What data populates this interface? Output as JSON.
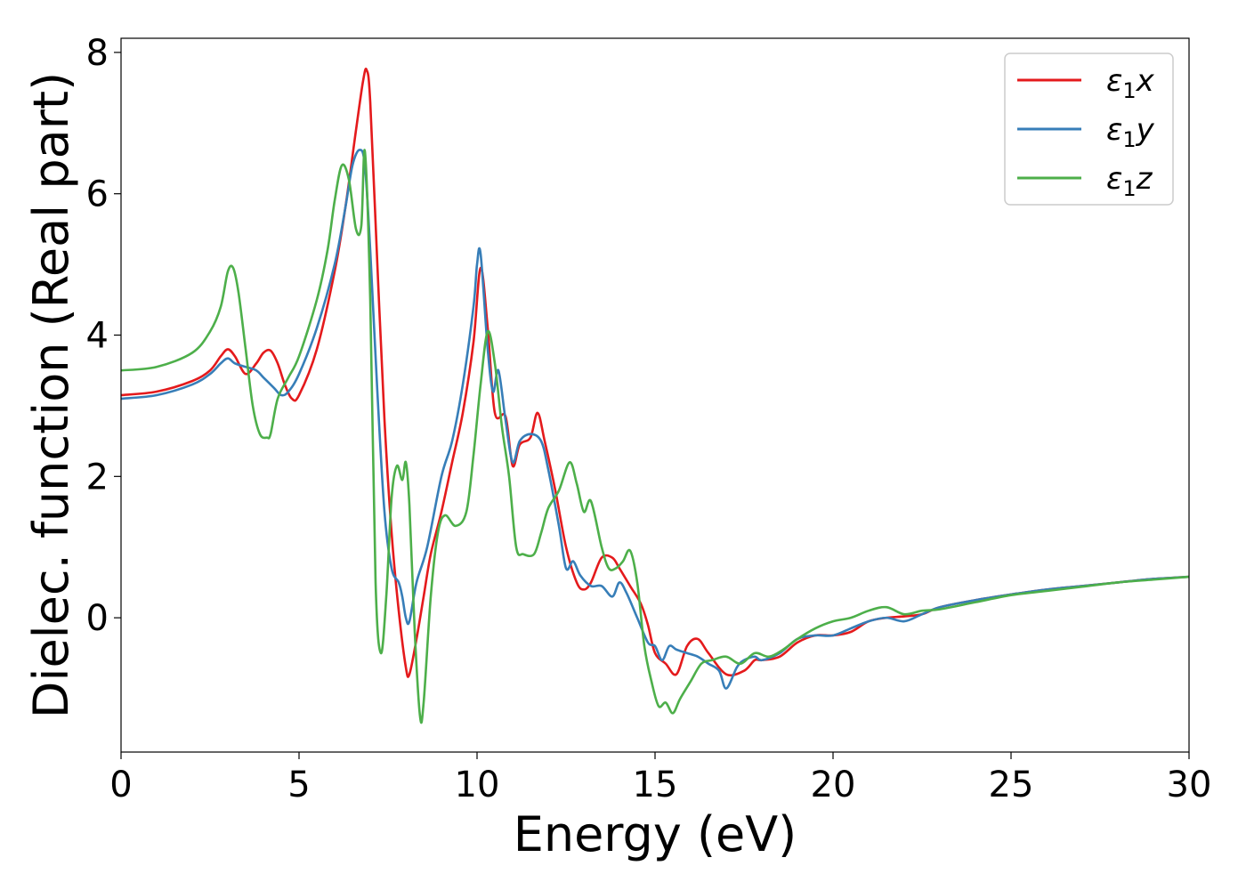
{
  "chart_data": {
    "type": "line",
    "title": "",
    "xlabel": "Energy (eV)",
    "ylabel": "Dielec. function (Real part)",
    "xlim": [
      0,
      30
    ],
    "ylim": [
      -1.9,
      8.2
    ],
    "xticks": [
      0,
      5,
      10,
      15,
      20,
      25,
      30
    ],
    "yticks": [
      0,
      2,
      4,
      6,
      8
    ],
    "grid": false,
    "legend_position": "top-right",
    "series": [
      {
        "name_base": "ε",
        "name_sub": "1",
        "name_tail": "x",
        "color": "#e41a1c",
        "x": [
          0,
          1,
          2,
          2.5,
          2.8,
          3.0,
          3.2,
          3.5,
          3.8,
          4.0,
          4.2,
          4.4,
          4.6,
          4.8,
          5.0,
          5.5,
          6.0,
          6.3,
          6.6,
          6.8,
          6.9,
          7.0,
          7.2,
          7.4,
          7.6,
          7.8,
          8.0,
          8.1,
          8.3,
          8.5,
          8.7,
          9.0,
          9.3,
          9.6,
          9.9,
          10.1,
          10.3,
          10.5,
          10.8,
          11.0,
          11.2,
          11.5,
          11.7,
          11.9,
          12.2,
          12.5,
          12.8,
          13.0,
          13.2,
          13.5,
          13.8,
          14.0,
          14.3,
          14.6,
          14.8,
          15.0,
          15.3,
          15.6,
          15.9,
          16.2,
          16.5,
          17.0,
          17.5,
          17.8,
          18.0,
          18.5,
          19.0,
          19.5,
          20.0,
          20.5,
          21.0,
          21.5,
          22.0,
          22.5,
          23.0,
          24.0,
          25.0,
          26.0,
          27.0,
          28.0,
          29.0,
          30.0
        ],
        "values": [
          3.15,
          3.2,
          3.35,
          3.5,
          3.7,
          3.8,
          3.7,
          3.45,
          3.6,
          3.75,
          3.78,
          3.6,
          3.3,
          3.1,
          3.15,
          3.8,
          4.9,
          5.8,
          6.9,
          7.6,
          7.75,
          7.3,
          5.0,
          2.8,
          1.2,
          0.1,
          -0.7,
          -0.8,
          -0.3,
          0.3,
          0.9,
          1.5,
          2.2,
          2.9,
          3.9,
          4.95,
          4.1,
          2.9,
          2.85,
          2.15,
          2.45,
          2.55,
          2.9,
          2.5,
          1.8,
          1.0,
          0.5,
          0.4,
          0.5,
          0.85,
          0.85,
          0.7,
          0.45,
          0.2,
          -0.1,
          -0.5,
          -0.65,
          -0.8,
          -0.4,
          -0.3,
          -0.5,
          -0.8,
          -0.75,
          -0.6,
          -0.6,
          -0.55,
          -0.35,
          -0.25,
          -0.25,
          -0.2,
          -0.05,
          0.0,
          0.02,
          0.05,
          0.15,
          0.25,
          0.33,
          0.4,
          0.45,
          0.5,
          0.55,
          0.58
        ]
      },
      {
        "name_base": "ε",
        "name_sub": "1",
        "name_tail": "y",
        "color": "#377eb8",
        "x": [
          0,
          1,
          2,
          2.5,
          2.8,
          3.0,
          3.2,
          3.5,
          3.8,
          4.0,
          4.3,
          4.5,
          4.7,
          5.0,
          5.5,
          6.0,
          6.3,
          6.5,
          6.7,
          6.85,
          7.0,
          7.2,
          7.4,
          7.6,
          7.8,
          7.9,
          8.0,
          8.1,
          8.3,
          8.6,
          9.0,
          9.3,
          9.6,
          9.9,
          10.0,
          10.1,
          10.3,
          10.45,
          10.6,
          10.8,
          11.0,
          11.2,
          11.5,
          11.8,
          12.0,
          12.3,
          12.5,
          12.7,
          12.9,
          13.2,
          13.5,
          13.8,
          14.0,
          14.2,
          14.5,
          14.8,
          15.0,
          15.2,
          15.4,
          15.6,
          15.9,
          16.2,
          16.5,
          16.8,
          17.0,
          17.3,
          17.5,
          17.8,
          18.0,
          18.5,
          19.0,
          19.5,
          20.0,
          20.5,
          21.0,
          21.5,
          22.0,
          22.5,
          23.0,
          24.0,
          25.0,
          26.0,
          27.0,
          28.0,
          29.0,
          30.0
        ],
        "values": [
          3.1,
          3.15,
          3.3,
          3.45,
          3.6,
          3.67,
          3.6,
          3.55,
          3.5,
          3.4,
          3.25,
          3.15,
          3.2,
          3.45,
          4.1,
          5.0,
          5.8,
          6.4,
          6.62,
          6.4,
          5.2,
          3.2,
          1.5,
          0.7,
          0.5,
          0.3,
          0.0,
          -0.05,
          0.5,
          1.0,
          2.0,
          2.5,
          3.3,
          4.4,
          5.0,
          5.15,
          3.8,
          3.2,
          3.5,
          2.8,
          2.2,
          2.5,
          2.6,
          2.5,
          2.1,
          1.3,
          0.7,
          0.8,
          0.6,
          0.45,
          0.45,
          0.3,
          0.5,
          0.35,
          0.0,
          -0.35,
          -0.4,
          -0.6,
          -0.4,
          -0.45,
          -0.5,
          -0.55,
          -0.65,
          -0.75,
          -1.0,
          -0.7,
          -0.6,
          -0.55,
          -0.6,
          -0.5,
          -0.3,
          -0.25,
          -0.25,
          -0.15,
          -0.05,
          0.0,
          -0.05,
          0.05,
          0.15,
          0.25,
          0.33,
          0.4,
          0.45,
          0.5,
          0.55,
          0.58
        ]
      },
      {
        "name_base": "ε",
        "name_sub": "1",
        "name_tail": "z",
        "color": "#4daf4a",
        "x": [
          0,
          1,
          2,
          2.5,
          2.8,
          3.0,
          3.15,
          3.3,
          3.5,
          3.7,
          3.9,
          4.1,
          4.2,
          4.4,
          4.7,
          5.0,
          5.5,
          5.8,
          6.0,
          6.2,
          6.4,
          6.6,
          6.75,
          6.85,
          7.0,
          7.15,
          7.3,
          7.45,
          7.6,
          7.75,
          7.9,
          8.0,
          8.1,
          8.25,
          8.4,
          8.5,
          8.7,
          8.9,
          9.1,
          9.4,
          9.7,
          9.9,
          10.1,
          10.3,
          10.5,
          10.7,
          10.9,
          11.1,
          11.3,
          11.6,
          11.8,
          12.0,
          12.3,
          12.6,
          12.8,
          13.0,
          13.2,
          13.5,
          13.7,
          13.9,
          14.1,
          14.3,
          14.5,
          14.7,
          14.9,
          15.1,
          15.3,
          15.5,
          15.7,
          16.0,
          16.3,
          16.6,
          17.0,
          17.4,
          17.8,
          18.2,
          18.6,
          19.0,
          19.5,
          20.0,
          20.5,
          21.0,
          21.5,
          22.0,
          22.5,
          23.0,
          24.0,
          25.0,
          26.0,
          27.0,
          28.0,
          29.0,
          30.0
        ],
        "values": [
          3.5,
          3.55,
          3.75,
          4.05,
          4.4,
          4.9,
          4.95,
          4.6,
          3.8,
          3.0,
          2.6,
          2.55,
          2.6,
          3.1,
          3.4,
          3.7,
          4.5,
          5.2,
          5.9,
          6.4,
          6.2,
          5.5,
          5.55,
          6.6,
          4.5,
          0.5,
          -0.5,
          0.3,
          1.7,
          2.15,
          1.95,
          2.2,
          1.6,
          -0.2,
          -1.4,
          -1.2,
          0.3,
          1.2,
          1.45,
          1.3,
          1.5,
          2.3,
          3.3,
          4.05,
          3.6,
          2.7,
          2.0,
          1.0,
          0.9,
          0.9,
          1.2,
          1.55,
          1.8,
          2.2,
          1.9,
          1.5,
          1.65,
          1.0,
          0.7,
          0.7,
          0.8,
          0.95,
          0.5,
          -0.4,
          -0.9,
          -1.25,
          -1.2,
          -1.35,
          -1.15,
          -0.9,
          -0.65,
          -0.6,
          -0.55,
          -0.65,
          -0.5,
          -0.55,
          -0.45,
          -0.3,
          -0.15,
          -0.05,
          0.0,
          0.1,
          0.15,
          0.05,
          0.1,
          0.12,
          0.22,
          0.32,
          0.38,
          0.44,
          0.5,
          0.54,
          0.58
        ]
      }
    ]
  }
}
